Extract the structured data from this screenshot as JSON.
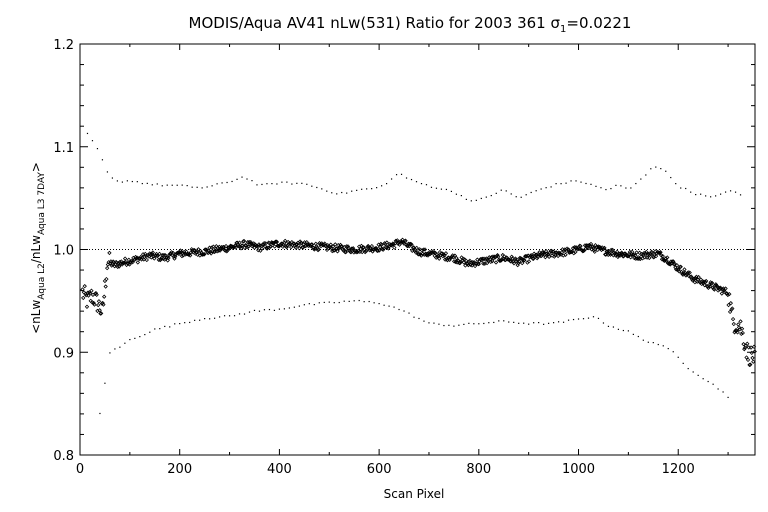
{
  "chart_data": {
    "type": "scatter",
    "title_parts": [
      "MODIS/Aqua AV41 nLw(531) Ratio for 2003 361 ",
      "σ",
      "1",
      "=0.0221"
    ],
    "xlabel": "Scan Pixel",
    "ylabel_parts": [
      "<nLw",
      "Aqua L2",
      "/nLw",
      "Aqua L3 7DAY",
      ">"
    ],
    "xlim": [
      0,
      1354
    ],
    "ylim": [
      0.8,
      1.2
    ],
    "x_ticks": [
      0,
      200,
      400,
      600,
      800,
      1000,
      1200
    ],
    "y_ticks": [
      0.8,
      0.9,
      1.0,
      1.1,
      1.2
    ],
    "y_tick_labels": [
      "0.8",
      "0.9",
      "1.0",
      "1.1",
      "1.2"
    ],
    "reference_line": 1.0,
    "series": [
      {
        "role": "mean",
        "marker": "diamond",
        "profile": [
          [
            5,
            0.958
          ],
          [
            15,
            0.95
          ],
          [
            25,
            0.955
          ],
          [
            35,
            0.948
          ],
          [
            45,
            0.938
          ],
          [
            55,
            0.988
          ],
          [
            70,
            0.985
          ],
          [
            90,
            0.988
          ],
          [
            110,
            0.99
          ],
          [
            140,
            0.994
          ],
          [
            170,
            0.992
          ],
          [
            200,
            0.996
          ],
          [
            250,
            0.998
          ],
          [
            300,
            1.002
          ],
          [
            330,
            1.005
          ],
          [
            360,
            1.002
          ],
          [
            400,
            1.006
          ],
          [
            450,
            1.004
          ],
          [
            500,
            1.002
          ],
          [
            550,
            1.0
          ],
          [
            600,
            1.002
          ],
          [
            630,
            1.005
          ],
          [
            645,
            1.008
          ],
          [
            660,
            1.003
          ],
          [
            680,
            0.998
          ],
          [
            700,
            0.996
          ],
          [
            750,
            0.992
          ],
          [
            780,
            0.986
          ],
          [
            800,
            0.988
          ],
          [
            850,
            0.992
          ],
          [
            880,
            0.988
          ],
          [
            920,
            0.994
          ],
          [
            950,
            0.996
          ],
          [
            980,
            0.998
          ],
          [
            1000,
            1.0
          ],
          [
            1020,
            1.003
          ],
          [
            1040,
            1.0
          ],
          [
            1080,
            0.996
          ],
          [
            1120,
            0.994
          ],
          [
            1160,
            0.996
          ],
          [
            1180,
            0.99
          ],
          [
            1200,
            0.982
          ],
          [
            1230,
            0.972
          ],
          [
            1260,
            0.966
          ],
          [
            1280,
            0.962
          ],
          [
            1300,
            0.958
          ],
          [
            1310,
            0.93
          ],
          [
            1325,
            0.925
          ],
          [
            1340,
            0.898
          ],
          [
            1354,
            0.895
          ]
        ]
      },
      {
        "role": "upper",
        "marker": "dot",
        "profile": [
          [
            15,
            1.112
          ],
          [
            35,
            1.098
          ],
          [
            55,
            1.075
          ],
          [
            70,
            1.066
          ],
          [
            100,
            1.067
          ],
          [
            150,
            1.063
          ],
          [
            200,
            1.062
          ],
          [
            250,
            1.06
          ],
          [
            300,
            1.066
          ],
          [
            330,
            1.071
          ],
          [
            360,
            1.062
          ],
          [
            400,
            1.065
          ],
          [
            450,
            1.064
          ],
          [
            520,
            1.054
          ],
          [
            560,
            1.058
          ],
          [
            600,
            1.06
          ],
          [
            630,
            1.07
          ],
          [
            640,
            1.075
          ],
          [
            660,
            1.068
          ],
          [
            700,
            1.062
          ],
          [
            750,
            1.056
          ],
          [
            790,
            1.046
          ],
          [
            820,
            1.052
          ],
          [
            850,
            1.058
          ],
          [
            880,
            1.05
          ],
          [
            920,
            1.058
          ],
          [
            960,
            1.064
          ],
          [
            1000,
            1.067
          ],
          [
            1030,
            1.062
          ],
          [
            1060,
            1.058
          ],
          [
            1080,
            1.063
          ],
          [
            1100,
            1.058
          ],
          [
            1130,
            1.07
          ],
          [
            1150,
            1.082
          ],
          [
            1170,
            1.078
          ],
          [
            1200,
            1.062
          ],
          [
            1230,
            1.055
          ],
          [
            1270,
            1.05
          ],
          [
            1300,
            1.058
          ],
          [
            1330,
            1.052
          ]
        ]
      },
      {
        "role": "lower",
        "marker": "dot",
        "profile": [
          [
            40,
            0.84
          ],
          [
            60,
            0.9
          ],
          [
            80,
            0.905
          ],
          [
            100,
            0.912
          ],
          [
            150,
            0.922
          ],
          [
            200,
            0.928
          ],
          [
            250,
            0.933
          ],
          [
            300,
            0.935
          ],
          [
            350,
            0.94
          ],
          [
            400,
            0.942
          ],
          [
            450,
            0.946
          ],
          [
            500,
            0.948
          ],
          [
            550,
            0.95
          ],
          [
            600,
            0.948
          ],
          [
            640,
            0.942
          ],
          [
            670,
            0.935
          ],
          [
            700,
            0.928
          ],
          [
            750,
            0.926
          ],
          [
            800,
            0.928
          ],
          [
            850,
            0.93
          ],
          [
            900,
            0.928
          ],
          [
            950,
            0.928
          ],
          [
            1000,
            0.932
          ],
          [
            1030,
            0.935
          ],
          [
            1060,
            0.926
          ],
          [
            1100,
            0.92
          ],
          [
            1130,
            0.912
          ],
          [
            1160,
            0.908
          ],
          [
            1190,
            0.9
          ],
          [
            1220,
            0.885
          ],
          [
            1250,
            0.875
          ],
          [
            1280,
            0.865
          ],
          [
            1300,
            0.857
          ]
        ]
      }
    ],
    "grid": false,
    "legend": "none"
  }
}
